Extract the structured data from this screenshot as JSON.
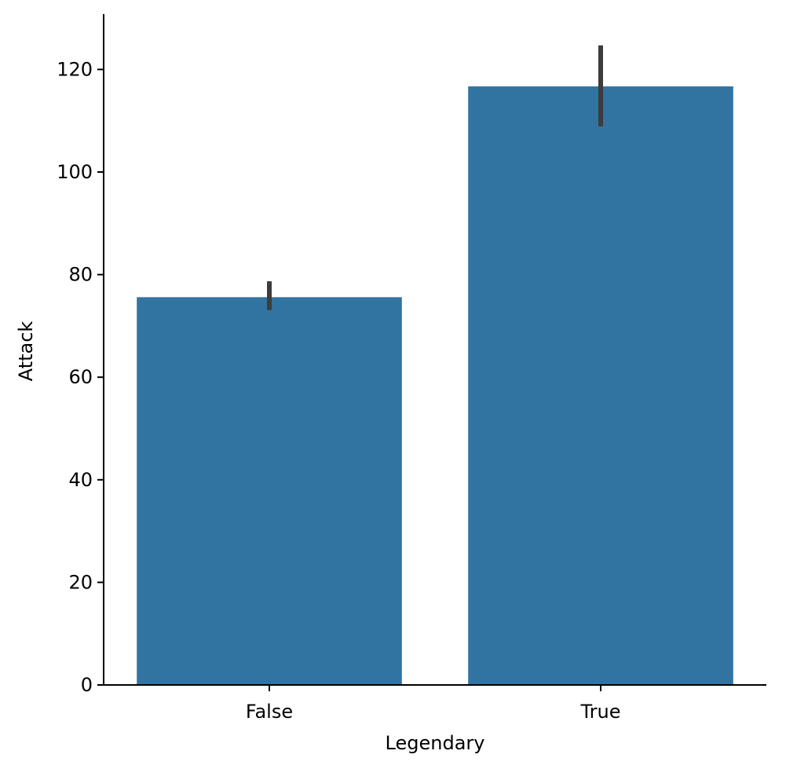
{
  "chart_data": {
    "type": "bar",
    "categories": [
      "False",
      "True"
    ],
    "values": [
      75.6,
      116.7
    ],
    "error_bars": [
      [
        73.1,
        78.7
      ],
      [
        108.9,
        124.7
      ]
    ],
    "xlabel": "Legendary",
    "ylabel": "Attack",
    "ylim": [
      0,
      130.7
    ],
    "yticks": [
      0,
      20,
      40,
      60,
      80,
      100,
      120
    ],
    "grid": false,
    "legend": "none"
  },
  "colors": {
    "bar": "#3274a1",
    "errorbar": "#3c3c3c",
    "axis": "#000000"
  }
}
